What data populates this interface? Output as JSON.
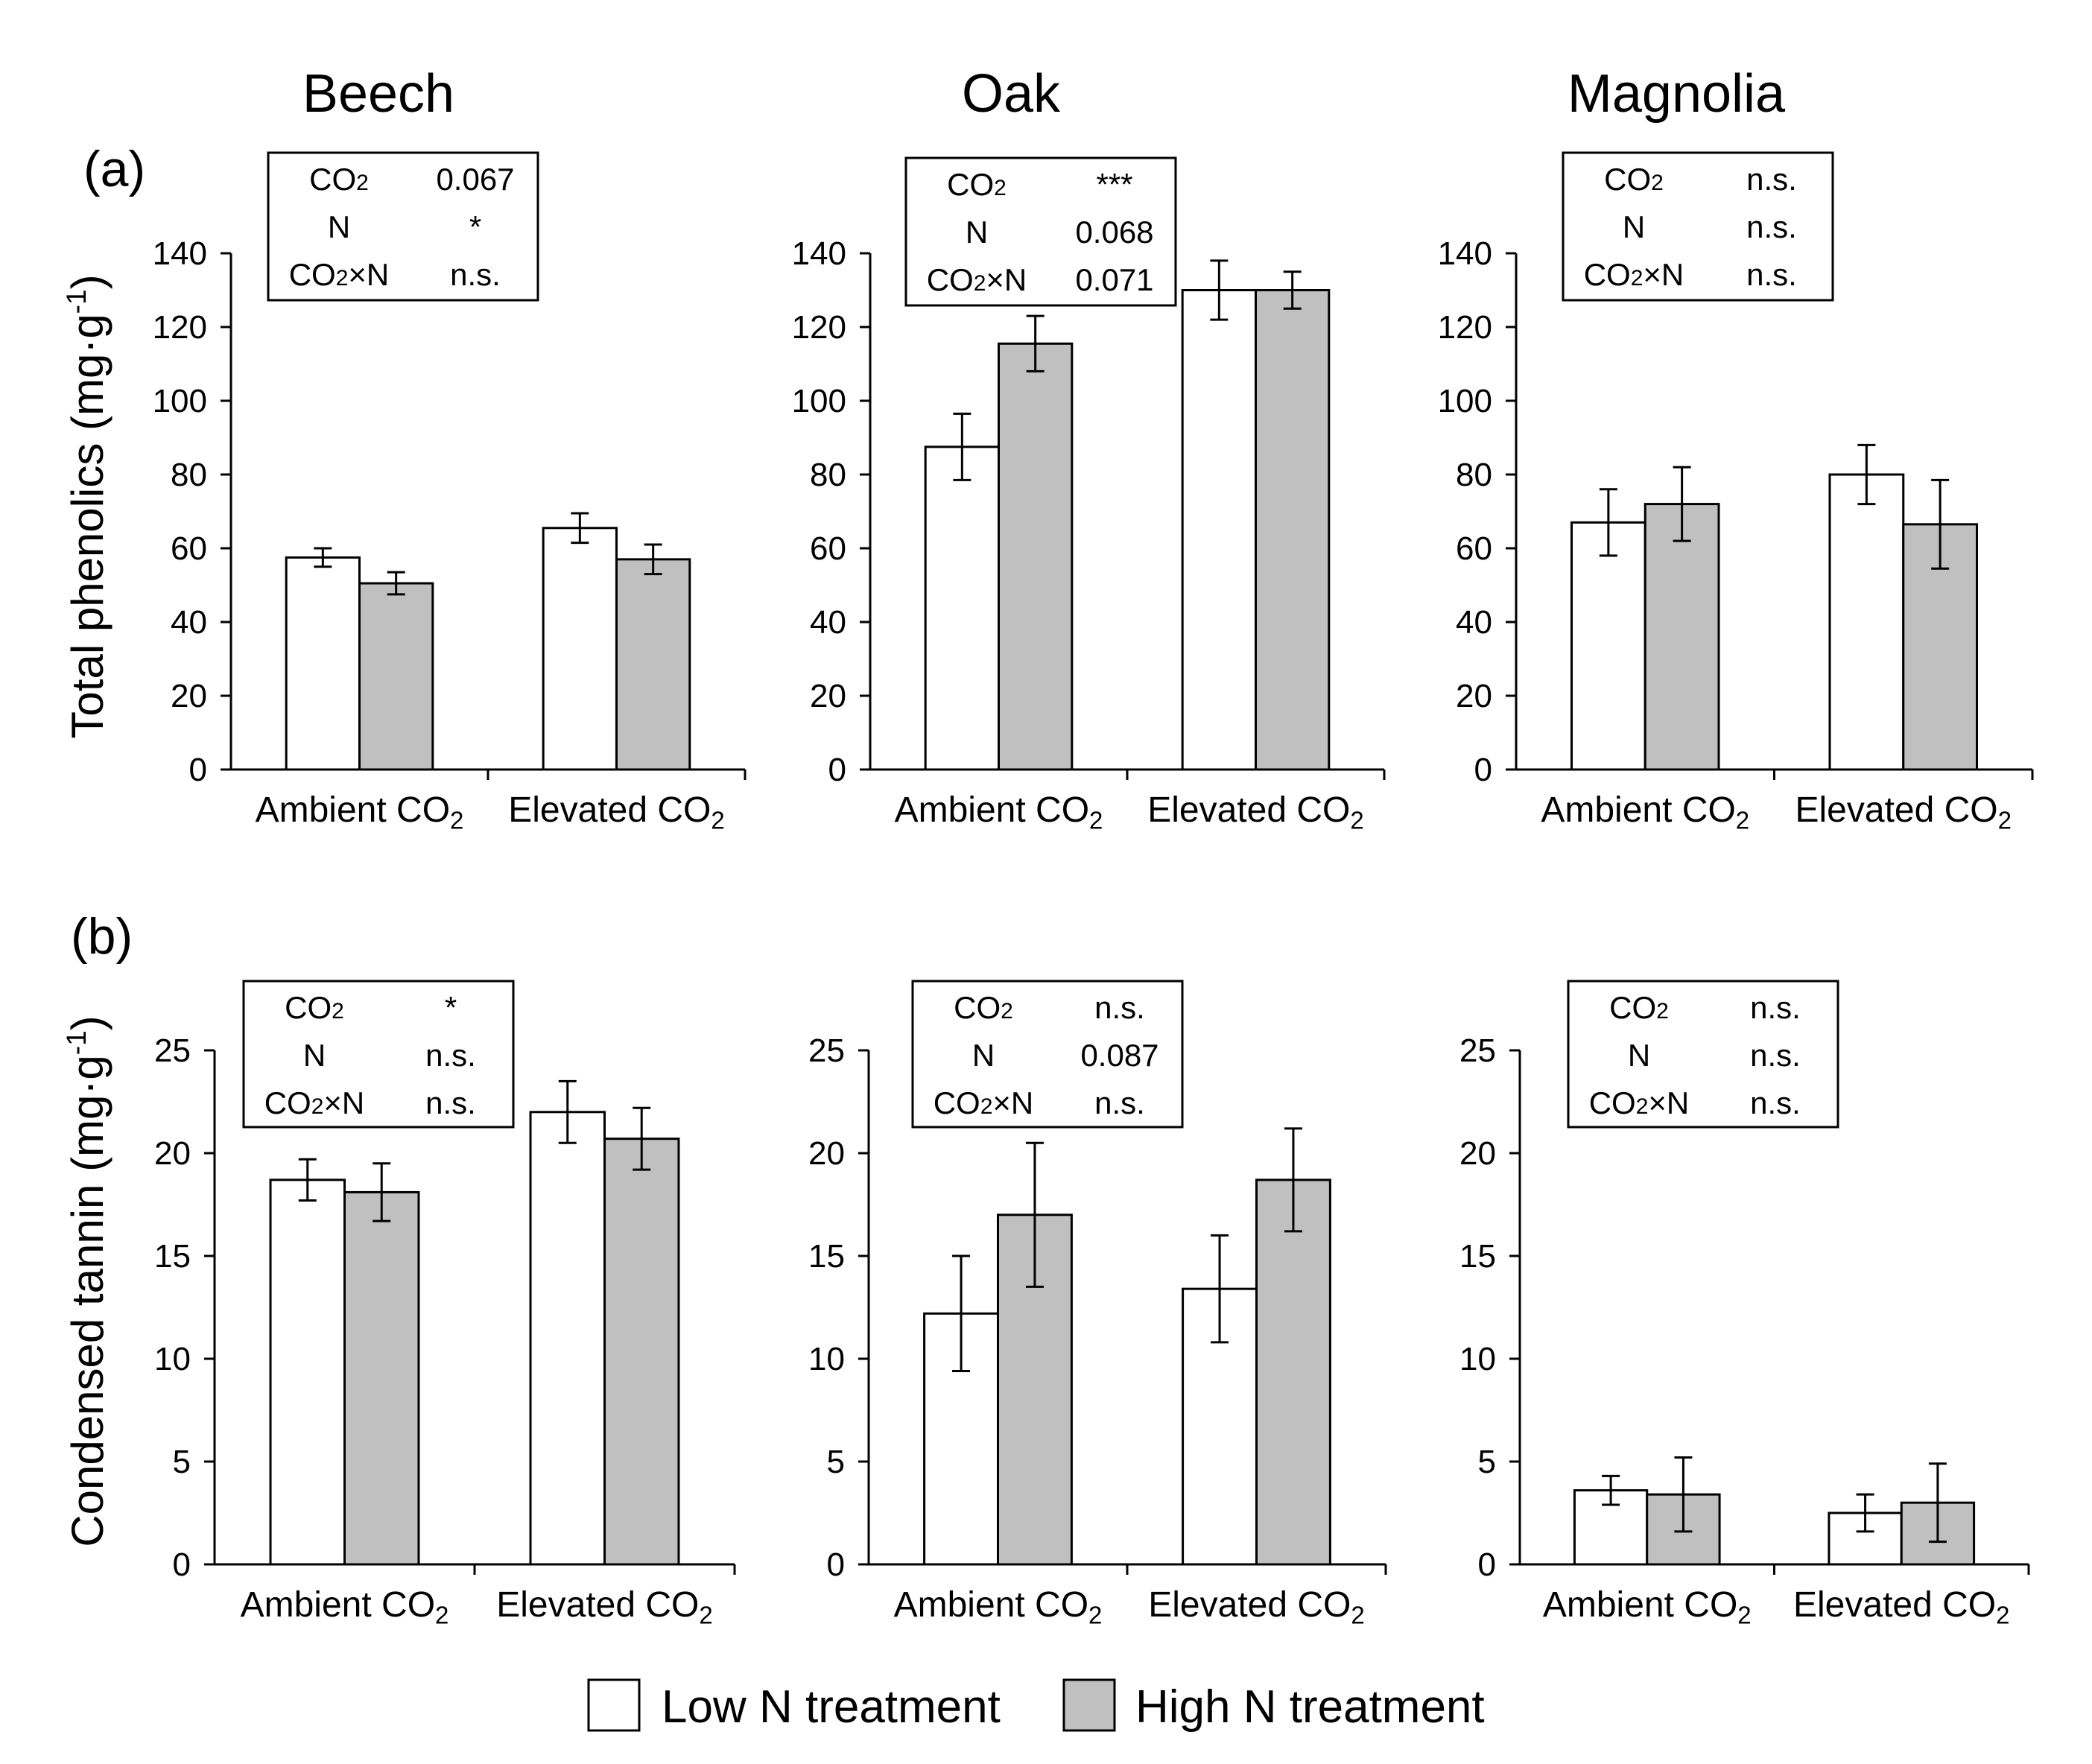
{
  "figure": {
    "species_titles": [
      "Beech",
      "Oak",
      "Magnolia"
    ],
    "row_labels": [
      "(a)",
      "(b)"
    ],
    "legend": [
      {
        "label": "Low N treatment",
        "color": "#ffffff"
      },
      {
        "label": "High N treatment",
        "color": "#c0c0c0"
      }
    ],
    "colors": {
      "low": "#ffffff",
      "high": "#c0c0c0",
      "axis": "#000000"
    }
  },
  "chart_data": [
    {
      "type": "bar",
      "species": "Beech",
      "row": "a",
      "ylabel": "Total phenolics (mg·g-1)",
      "ylim": [
        0,
        140
      ],
      "yticks": [
        0,
        20,
        40,
        60,
        80,
        100,
        120,
        140
      ],
      "categories": [
        "Ambient CO2",
        "Elevated CO2"
      ],
      "series": [
        {
          "name": "Low N treatment",
          "values": [
            57.5,
            65.5
          ],
          "errors": [
            2.5,
            4
          ]
        },
        {
          "name": "High N treatment",
          "values": [
            50.5,
            57
          ],
          "errors": [
            3,
            4
          ]
        }
      ],
      "stats": [
        [
          "CO2",
          "0.067"
        ],
        [
          "N",
          "*"
        ],
        [
          "CO2×N",
          "n.s."
        ]
      ]
    },
    {
      "type": "bar",
      "species": "Oak",
      "row": "a",
      "ylabel": "",
      "ylim": [
        0,
        140
      ],
      "yticks": [
        0,
        20,
        40,
        60,
        80,
        100,
        120,
        140
      ],
      "categories": [
        "Ambient CO2",
        "Elevated CO2"
      ],
      "series": [
        {
          "name": "Low N treatment",
          "values": [
            87.5,
            130
          ],
          "errors": [
            9,
            8
          ]
        },
        {
          "name": "High N treatment",
          "values": [
            115.5,
            130
          ],
          "errors": [
            7.5,
            5
          ]
        }
      ],
      "stats": [
        [
          "CO2",
          "***"
        ],
        [
          "N",
          "0.068"
        ],
        [
          "CO2×N",
          "0.071"
        ]
      ]
    },
    {
      "type": "bar",
      "species": "Magnolia",
      "row": "a",
      "ylabel": "",
      "ylim": [
        0,
        140
      ],
      "yticks": [
        0,
        20,
        40,
        60,
        80,
        100,
        120,
        140
      ],
      "categories": [
        "Ambient CO2",
        "Elevated CO2"
      ],
      "series": [
        {
          "name": "Low N treatment",
          "values": [
            67,
            80
          ],
          "errors": [
            9,
            8
          ]
        },
        {
          "name": "High N treatment",
          "values": [
            72,
            66.5
          ],
          "errors": [
            10,
            12
          ]
        }
      ],
      "stats": [
        [
          "CO2",
          "n.s."
        ],
        [
          "N",
          "n.s."
        ],
        [
          "CO2×N",
          "n.s."
        ]
      ]
    },
    {
      "type": "bar",
      "species": "Beech",
      "row": "b",
      "ylabel": "Condensed tannin (mg·g-1)",
      "ylim": [
        0,
        25
      ],
      "yticks": [
        0,
        5,
        10,
        15,
        20,
        25
      ],
      "categories": [
        "Ambient CO2",
        "Elevated CO2"
      ],
      "series": [
        {
          "name": "Low N treatment",
          "values": [
            18.7,
            22
          ],
          "errors": [
            1,
            1.5
          ]
        },
        {
          "name": "High N treatment",
          "values": [
            18.1,
            20.7
          ],
          "errors": [
            1.4,
            1.5
          ]
        }
      ],
      "stats": [
        [
          "CO2",
          "*"
        ],
        [
          "N",
          "n.s."
        ],
        [
          "CO2×N",
          "n.s."
        ]
      ]
    },
    {
      "type": "bar",
      "species": "Oak",
      "row": "b",
      "ylabel": "",
      "ylim": [
        0,
        25
      ],
      "yticks": [
        0,
        5,
        10,
        15,
        20,
        25
      ],
      "categories": [
        "Ambient CO2",
        "Elevated CO2"
      ],
      "series": [
        {
          "name": "Low N treatment",
          "values": [
            12.2,
            13.4
          ],
          "errors": [
            2.8,
            2.6
          ]
        },
        {
          "name": "High N treatment",
          "values": [
            17,
            18.7
          ],
          "errors": [
            3.5,
            2.5
          ]
        }
      ],
      "stats": [
        [
          "CO2",
          "n.s."
        ],
        [
          "N",
          "0.087"
        ],
        [
          "CO2×N",
          "n.s."
        ]
      ]
    },
    {
      "type": "bar",
      "species": "Magnolia",
      "row": "b",
      "ylabel": "",
      "ylim": [
        0,
        25
      ],
      "yticks": [
        0,
        5,
        10,
        15,
        20,
        25
      ],
      "categories": [
        "Ambient CO2",
        "Elevated CO2"
      ],
      "series": [
        {
          "name": "Low N treatment",
          "values": [
            3.6,
            2.5
          ],
          "errors": [
            0.7,
            0.9
          ]
        },
        {
          "name": "High N treatment",
          "values": [
            3.4,
            3
          ],
          "errors": [
            1.8,
            1.9
          ]
        }
      ],
      "stats": [
        [
          "CO2",
          "n.s."
        ],
        [
          "N",
          "n.s."
        ],
        [
          "CO2×N",
          "n.s."
        ]
      ]
    }
  ]
}
